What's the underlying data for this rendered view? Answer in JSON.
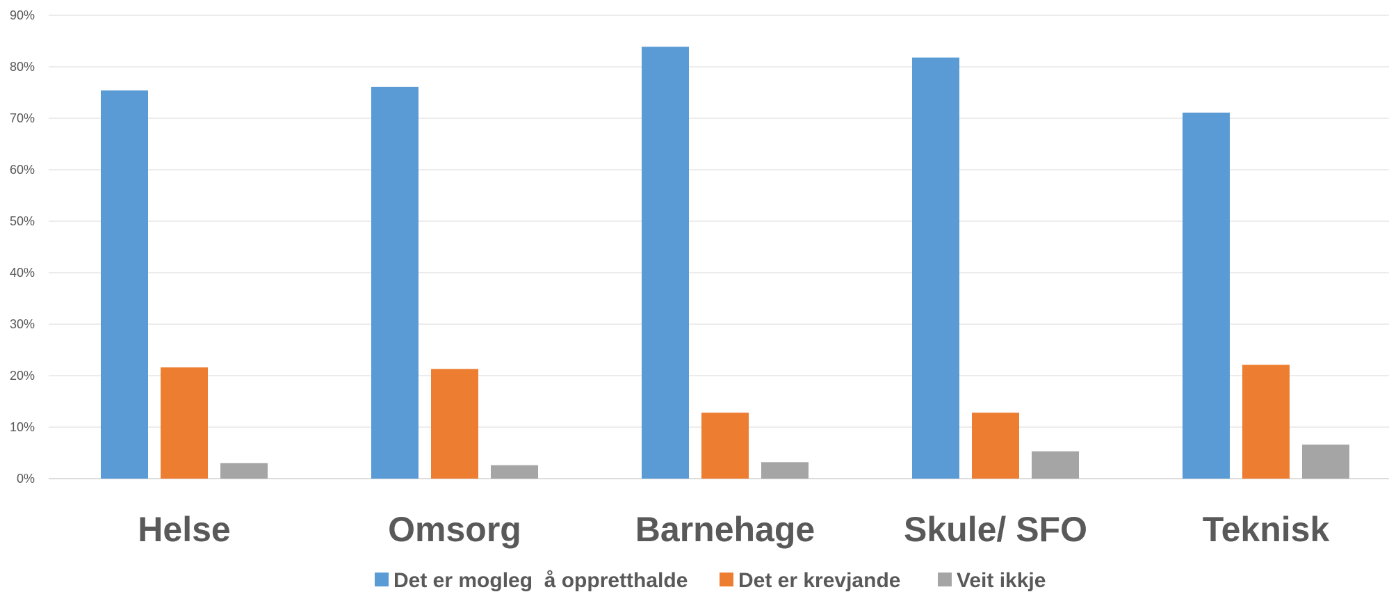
{
  "chart_data": {
    "type": "bar",
    "title": "",
    "xlabel": "",
    "ylabel": "",
    "ylim": [
      0,
      90
    ],
    "y_ticks": [
      "0%",
      "10%",
      "20%",
      "30%",
      "40%",
      "50%",
      "60%",
      "70%",
      "80%",
      "90%"
    ],
    "grid": true,
    "legend_position": "bottom",
    "categories": [
      "Helse",
      "Omsorg",
      "Barnehage",
      "Skule/ SFO",
      "Teknisk"
    ],
    "series": [
      {
        "name": "Det er mogleg  å oppretthalde",
        "color": "#5B9BD5",
        "values": [
          75.4,
          76.1,
          83.9,
          81.8,
          71.1
        ]
      },
      {
        "name": "Det er krevjande",
        "color": "#ED7D31",
        "values": [
          21.6,
          21.3,
          12.8,
          12.8,
          22.1
        ]
      },
      {
        "name": "Veit ikkje",
        "color": "#A5A5A5",
        "values": [
          3.0,
          2.6,
          3.2,
          5.3,
          6.6
        ]
      }
    ]
  }
}
